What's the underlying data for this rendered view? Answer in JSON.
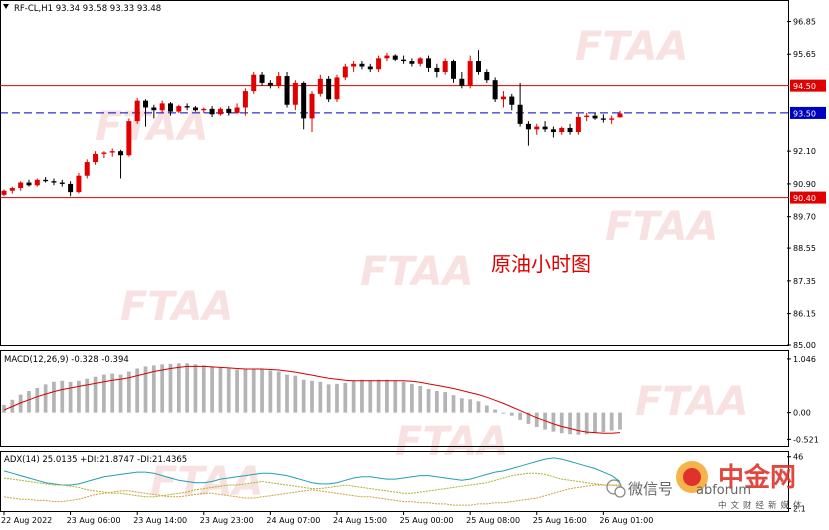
{
  "chart_data": [
    {
      "type": "candlestick",
      "symbol_line": "RF-CL,H1  93.34 93.58 93.33 93.48",
      "annotation": "原油小时图",
      "ylim": [
        85.0,
        97.6
      ],
      "y_ticks": [
        "96.85",
        "95.65",
        "93.50",
        "92.10",
        "90.90",
        "89.70",
        "88.55",
        "87.35",
        "86.15",
        "85.00"
      ],
      "y_tick_values": [
        96.85,
        95.65,
        93.5,
        92.1,
        90.9,
        89.7,
        88.55,
        87.35,
        86.15,
        85.0
      ],
      "levels": [
        {
          "label": "94.50",
          "value": 94.5,
          "style": "solid",
          "color": "#e00000"
        },
        {
          "label": "93.50",
          "value": 93.5,
          "style": "dashed",
          "color": "#0000c0"
        },
        {
          "label": "90.40",
          "value": 90.4,
          "style": "solid",
          "color": "#e00000"
        }
      ],
      "candles": [
        [
          90.5,
          90.7,
          90.45,
          90.65
        ],
        [
          90.65,
          90.8,
          90.55,
          90.75
        ],
        [
          90.75,
          91.0,
          90.65,
          90.95
        ],
        [
          90.95,
          91.05,
          90.8,
          90.85
        ],
        [
          90.85,
          91.1,
          90.8,
          91.05
        ],
        [
          91.05,
          91.15,
          90.95,
          91.0
        ],
        [
          91.0,
          91.1,
          90.85,
          90.95
        ],
        [
          90.95,
          91.05,
          90.8,
          90.9
        ],
        [
          90.9,
          91.0,
          90.45,
          90.6
        ],
        [
          90.6,
          91.3,
          90.55,
          91.2
        ],
        [
          91.2,
          91.8,
          91.1,
          91.7
        ],
        [
          91.7,
          92.1,
          91.6,
          92.0
        ],
        [
          92.0,
          92.1,
          91.85,
          92.05
        ],
        [
          92.05,
          92.2,
          91.9,
          92.1
        ],
        [
          92.1,
          92.15,
          91.1,
          91.95
        ],
        [
          91.95,
          93.3,
          91.9,
          93.2
        ],
        [
          93.2,
          94.05,
          93.1,
          93.95
        ],
        [
          93.95,
          94.0,
          93.0,
          93.7
        ],
        [
          93.7,
          93.8,
          93.3,
          93.6
        ],
        [
          93.6,
          93.95,
          93.5,
          93.85
        ],
        [
          93.85,
          93.9,
          93.4,
          93.55
        ],
        [
          93.55,
          93.8,
          93.5,
          93.75
        ],
        [
          93.75,
          93.85,
          93.6,
          93.7
        ],
        [
          93.7,
          93.75,
          93.55,
          93.6
        ],
        [
          93.6,
          93.7,
          93.5,
          93.65
        ],
        [
          93.65,
          93.75,
          93.35,
          93.45
        ],
        [
          93.45,
          93.7,
          93.4,
          93.65
        ],
        [
          93.65,
          93.75,
          93.4,
          93.5
        ],
        [
          93.5,
          93.85,
          93.45,
          93.7
        ],
        [
          93.7,
          94.4,
          93.4,
          94.3
        ],
        [
          94.3,
          95.0,
          94.2,
          94.9
        ],
        [
          94.9,
          95.0,
          94.5,
          94.6
        ],
        [
          94.6,
          94.7,
          94.4,
          94.5
        ],
        [
          94.5,
          95.0,
          94.4,
          94.85
        ],
        [
          94.85,
          95.0,
          93.7,
          93.8
        ],
        [
          93.8,
          94.7,
          93.6,
          94.6
        ],
        [
          94.6,
          94.65,
          92.9,
          93.3
        ],
        [
          93.3,
          94.3,
          92.8,
          94.2
        ],
        [
          94.2,
          94.9,
          94.1,
          94.75
        ],
        [
          94.75,
          94.85,
          93.9,
          94.0
        ],
        [
          94.0,
          94.9,
          93.9,
          94.8
        ],
        [
          94.8,
          95.3,
          94.7,
          95.2
        ],
        [
          95.2,
          95.4,
          95.0,
          95.3
        ],
        [
          95.3,
          95.4,
          95.1,
          95.2
        ],
        [
          95.2,
          95.3,
          95.0,
          95.1
        ],
        [
          95.1,
          95.6,
          95.0,
          95.5
        ],
        [
          95.5,
          95.7,
          95.4,
          95.6
        ],
        [
          95.6,
          95.65,
          95.4,
          95.45
        ],
        [
          95.45,
          95.6,
          95.3,
          95.4
        ],
        [
          95.4,
          95.5,
          95.2,
          95.3
        ],
        [
          95.3,
          95.55,
          95.2,
          95.5
        ],
        [
          95.5,
          95.6,
          95.0,
          95.15
        ],
        [
          95.15,
          95.3,
          94.8,
          95.0
        ],
        [
          95.0,
          95.5,
          94.9,
          95.4
        ],
        [
          95.4,
          95.45,
          94.6,
          94.75
        ],
        [
          94.75,
          95.0,
          94.4,
          94.5
        ],
        [
          94.5,
          95.6,
          94.4,
          95.4
        ],
        [
          95.4,
          95.8,
          94.9,
          95.0
        ],
        [
          95.0,
          95.1,
          94.6,
          94.7
        ],
        [
          94.7,
          94.8,
          93.9,
          94.0
        ],
        [
          94.0,
          94.3,
          93.7,
          94.1
        ],
        [
          94.1,
          94.2,
          93.6,
          93.8
        ],
        [
          93.8,
          94.6,
          93.0,
          93.1
        ],
        [
          93.1,
          93.2,
          92.3,
          92.9
        ],
        [
          92.9,
          93.1,
          92.7,
          93.0
        ],
        [
          93.0,
          93.2,
          92.8,
          92.9
        ],
        [
          92.9,
          93.0,
          92.6,
          92.8
        ],
        [
          92.8,
          93.0,
          92.7,
          92.95
        ],
        [
          92.95,
          93.1,
          92.7,
          92.8
        ],
        [
          92.8,
          93.5,
          92.7,
          93.35
        ],
        [
          93.35,
          93.5,
          93.2,
          93.4
        ],
        [
          93.4,
          93.5,
          93.25,
          93.3
        ],
        [
          93.3,
          93.45,
          93.15,
          93.25
        ],
        [
          93.25,
          93.4,
          93.1,
          93.3
        ],
        [
          93.34,
          93.58,
          93.33,
          93.48
        ]
      ],
      "x_labels": [
        "22 Aug 2022",
        "23 Aug 06:00",
        "23 Aug 14:00",
        "23 Aug 23:00",
        "24 Aug 07:00",
        "24 Aug 15:00",
        "25 Aug 00:00",
        "25 Aug 08:00",
        "25 Aug 16:00",
        "26 Aug 01:00"
      ],
      "x_label_index": [
        0,
        8,
        16,
        24,
        32,
        40,
        48,
        56,
        64,
        72
      ]
    },
    {
      "type": "bar",
      "title": "MACD(12,26,9) -0.328 -0.394",
      "ylim": [
        -0.65,
        1.2
      ],
      "y_ticks": [
        "1.046",
        "0.00",
        "-0.521"
      ],
      "y_tick_values": [
        1.046,
        0.0,
        -0.521
      ],
      "histogram": [
        0.15,
        0.25,
        0.35,
        0.42,
        0.48,
        0.55,
        0.6,
        0.62,
        0.6,
        0.62,
        0.66,
        0.7,
        0.74,
        0.76,
        0.74,
        0.8,
        0.86,
        0.9,
        0.92,
        0.94,
        0.95,
        0.96,
        0.96,
        0.94,
        0.92,
        0.9,
        0.88,
        0.86,
        0.84,
        0.84,
        0.85,
        0.84,
        0.82,
        0.8,
        0.74,
        0.72,
        0.64,
        0.62,
        0.6,
        0.55,
        0.56,
        0.58,
        0.62,
        0.64,
        0.63,
        0.64,
        0.64,
        0.62,
        0.6,
        0.56,
        0.52,
        0.46,
        0.42,
        0.4,
        0.34,
        0.28,
        0.26,
        0.22,
        0.14,
        0.06,
        0.0,
        -0.06,
        -0.14,
        -0.22,
        -0.28,
        -0.33,
        -0.37,
        -0.4,
        -0.42,
        -0.43,
        -0.42,
        -0.4,
        -0.38,
        -0.35,
        -0.33
      ],
      "signal": [
        0.05,
        0.12,
        0.19,
        0.25,
        0.31,
        0.36,
        0.41,
        0.45,
        0.48,
        0.51,
        0.54,
        0.57,
        0.6,
        0.63,
        0.65,
        0.68,
        0.72,
        0.76,
        0.8,
        0.83,
        0.86,
        0.88,
        0.9,
        0.9,
        0.9,
        0.89,
        0.88,
        0.87,
        0.86,
        0.85,
        0.85,
        0.85,
        0.84,
        0.83,
        0.81,
        0.79,
        0.76,
        0.73,
        0.7,
        0.67,
        0.65,
        0.63,
        0.62,
        0.62,
        0.62,
        0.62,
        0.62,
        0.62,
        0.62,
        0.61,
        0.59,
        0.56,
        0.53,
        0.5,
        0.47,
        0.43,
        0.39,
        0.35,
        0.3,
        0.24,
        0.18,
        0.11,
        0.04,
        -0.03,
        -0.1,
        -0.16,
        -0.22,
        -0.27,
        -0.31,
        -0.35,
        -0.38,
        -0.39,
        -0.4,
        -0.4,
        -0.39
      ]
    },
    {
      "type": "line",
      "title": "ADX(14) 25.0135 +DI:21.8747 -DI:21.4365",
      "ylim": [
        0,
        50
      ],
      "y_ticks": [
        "46",
        "2.1"
      ],
      "y_tick_values": [
        46,
        2.1
      ],
      "series": [
        {
          "values": [
            34,
            32,
            30,
            28,
            26,
            24,
            23,
            22,
            22,
            23,
            25,
            27,
            29,
            30,
            31,
            32,
            33,
            33,
            32,
            30,
            28,
            26,
            25,
            24,
            24,
            25,
            27,
            28,
            29,
            30,
            31,
            32,
            32,
            31,
            30,
            28,
            26,
            24,
            23,
            23,
            24,
            26,
            28,
            29,
            29,
            28,
            27,
            27,
            28,
            29,
            30,
            30,
            29,
            28,
            27,
            26,
            27,
            29,
            31,
            33,
            34,
            36,
            38,
            40,
            42,
            44,
            45,
            44,
            42,
            40,
            38,
            36,
            33,
            30,
            25
          ]
        },
        {
          "values": [
            28,
            27,
            26,
            25,
            24,
            23,
            22,
            22,
            21,
            20,
            18,
            17,
            16,
            15,
            15,
            14,
            13,
            12,
            12,
            13,
            14,
            15,
            16,
            18,
            19,
            20,
            21,
            22,
            22,
            23,
            24,
            25,
            24,
            23,
            22,
            21,
            20,
            19,
            19,
            20,
            21,
            22,
            21,
            20,
            19,
            18,
            17,
            16,
            15,
            15,
            16,
            17,
            18,
            19,
            20,
            21,
            22,
            23,
            24,
            26,
            28,
            30,
            31,
            32,
            32,
            31,
            29,
            27,
            26,
            25,
            24,
            23,
            22,
            22,
            22
          ]
        },
        {
          "values": [
            12,
            11,
            10,
            10,
            9,
            9,
            8,
            8,
            9,
            10,
            12,
            14,
            15,
            16,
            17,
            17,
            16,
            15,
            14,
            13,
            12,
            12,
            13,
            14,
            15,
            15,
            14,
            13,
            12,
            11,
            11,
            12,
            13,
            14,
            15,
            16,
            17,
            18,
            17,
            16,
            15,
            14,
            13,
            12,
            12,
            11,
            10,
            9,
            8,
            8,
            7,
            7,
            6,
            6,
            5,
            5,
            5,
            6,
            6,
            7,
            7,
            8,
            9,
            10,
            11,
            13,
            15,
            17,
            19,
            20,
            21,
            22,
            22,
            22,
            21
          ]
        }
      ],
      "x_labels": [
        "22 Aug 2022",
        "23 Aug 06:00",
        "23 Aug 14:00",
        "23 Aug 23:00",
        "24 Aug 07:00",
        "24 Aug 15:00",
        "25 Aug 00:00",
        "25 Aug 08:00",
        "25 Aug 16:00",
        "26 Aug 01:00"
      ]
    }
  ],
  "watermark": "FTAA",
  "logo": {
    "text": "中金网",
    "sub": "中文财经新媒体"
  },
  "wechat_text": "微信号",
  "url_text": "abforum",
  "colors": {
    "up": "#e00000",
    "down": "#000000",
    "macd_hist": "#b4b4b4",
    "macd_signal": "#d40000",
    "adx": "#20a0b0",
    "plus_di": "#b0b030",
    "minus_di": "#d0a040",
    "level_red": "#e00000",
    "level_blue": "#0000c0"
  }
}
